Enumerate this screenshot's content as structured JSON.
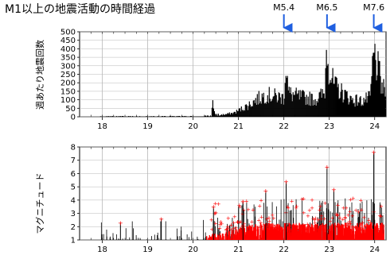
{
  "title": "M1以上の地震活動の時間経過",
  "chart_data": [
    {
      "type": "bar",
      "ylabel": "週あたり地震回数",
      "ylim": [
        0,
        500
      ],
      "yticks": [
        0,
        50,
        100,
        150,
        200,
        250,
        300,
        350,
        400,
        450,
        500
      ],
      "xlim": [
        17.5,
        24.25
      ],
      "xticks": [
        "18",
        "19",
        "20",
        "21",
        "22",
        "23",
        "24"
      ],
      "grid": true,
      "annotations": [
        {
          "label": "M5.4",
          "x": 22.0
        },
        {
          "label": "M6.5",
          "x": 22.95
        },
        {
          "label": "M7.6",
          "x": 23.98
        }
      ],
      "series": [
        {
          "color": "#000000",
          "points": [
            [
              18.0,
              2
            ],
            [
              18.5,
              3
            ],
            [
              19.0,
              2
            ],
            [
              19.5,
              3
            ],
            [
              20.0,
              3
            ],
            [
              20.4,
              5
            ],
            [
              20.45,
              85
            ],
            [
              20.5,
              10
            ],
            [
              20.7,
              15
            ],
            [
              20.9,
              25
            ],
            [
              21.0,
              40
            ],
            [
              21.2,
              70
            ],
            [
              21.4,
              110
            ],
            [
              21.6,
              140
            ],
            [
              21.8,
              130
            ],
            [
              22.0,
              120
            ],
            [
              22.05,
              360
            ],
            [
              22.1,
              150
            ],
            [
              22.3,
              130
            ],
            [
              22.5,
              120
            ],
            [
              22.7,
              110
            ],
            [
              22.9,
              150
            ],
            [
              22.95,
              505
            ],
            [
              23.0,
              300
            ],
            [
              23.1,
              200
            ],
            [
              23.3,
              150
            ],
            [
              23.5,
              110
            ],
            [
              23.7,
              100
            ],
            [
              23.9,
              120
            ],
            [
              23.98,
              400
            ],
            [
              24.05,
              330
            ],
            [
              24.15,
              200
            ],
            [
              24.2,
              170
            ]
          ]
        }
      ]
    },
    {
      "type": "scatter",
      "ylabel": "マグニチュード",
      "ylim": [
        1,
        8
      ],
      "yticks": [
        1,
        2,
        3,
        4,
        5,
        6,
        7,
        8
      ],
      "xlim": [
        17.5,
        24.25
      ],
      "xticks": [
        "18",
        "19",
        "20",
        "21",
        "22",
        "23",
        "24"
      ],
      "grid": true,
      "series": [
        {
          "color": "#ff0000",
          "highlight_points": [
            [
              20.45,
              3.5
            ],
            [
              21.6,
              4.7
            ],
            [
              22.05,
              5.4
            ],
            [
              22.95,
              6.5
            ],
            [
              23.98,
              7.6
            ],
            [
              23.1,
              4.8
            ],
            [
              21.1,
              3.9
            ],
            [
              19.3,
              2.6
            ],
            [
              18.4,
              2.3
            ]
          ]
        }
      ]
    }
  ]
}
